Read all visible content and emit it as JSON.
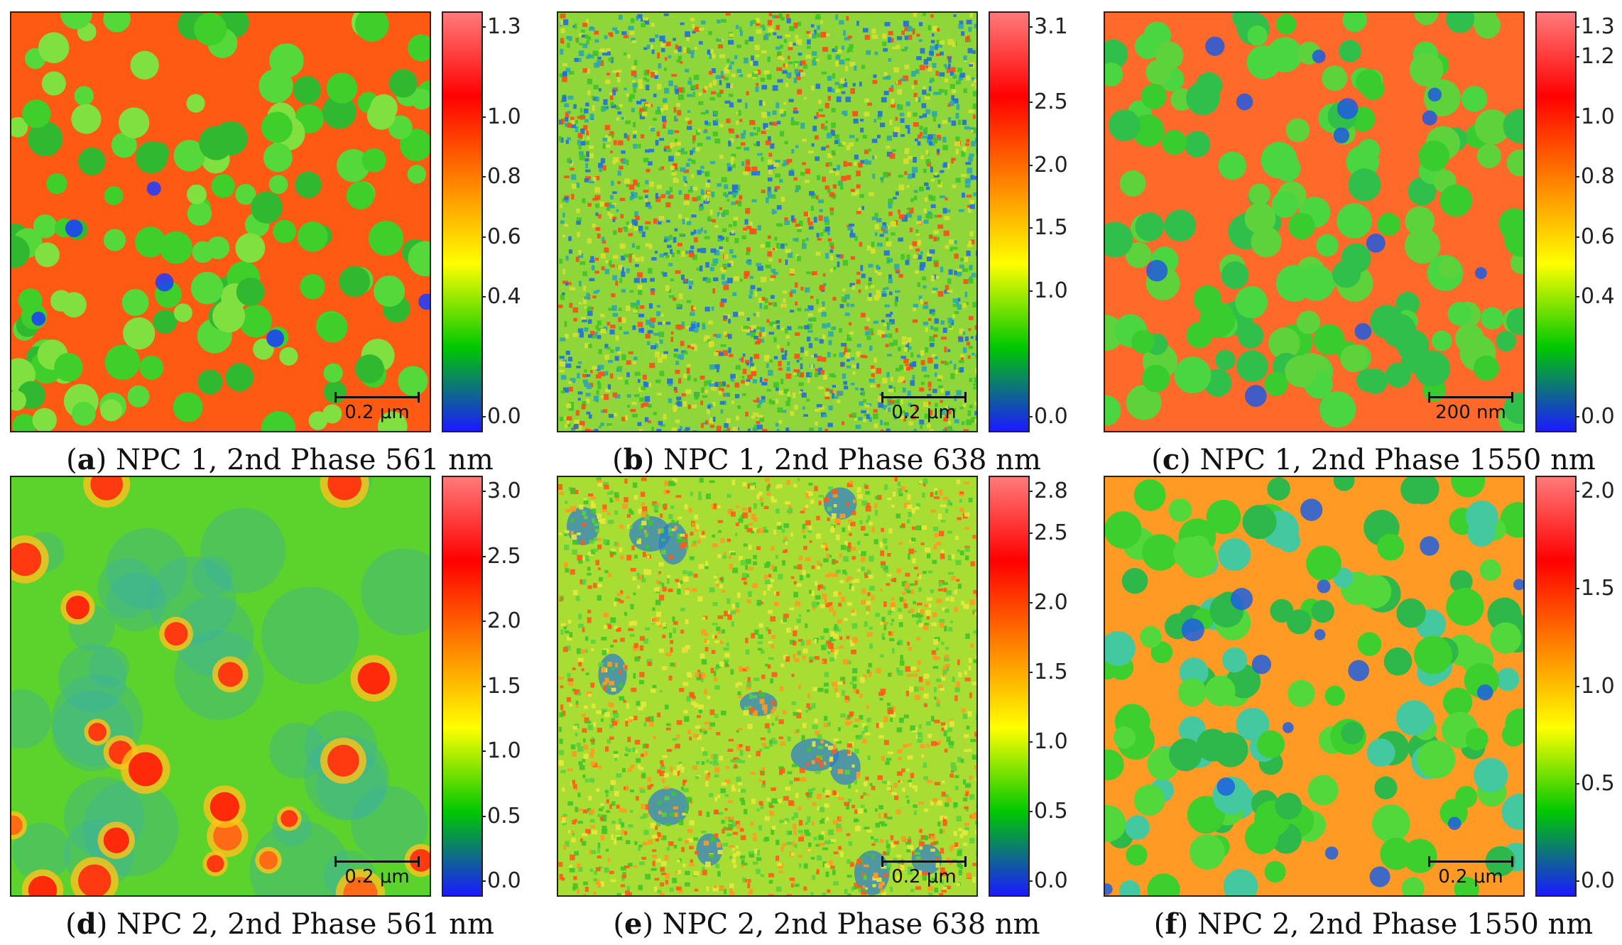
{
  "figure": {
    "panels": [
      {
        "id": "a",
        "letter": "a",
        "caption_text": "NPC 1, 2nd Phase 561 nm",
        "scale_label": "0.2 μm",
        "colorbar_ticks": [
          "1.3",
          "1.0",
          "0.8",
          "0.6",
          "0.4",
          "0.0"
        ],
        "colorbar_values": [
          1.3,
          1.0,
          0.8,
          0.6,
          0.4,
          0.0
        ],
        "range": [
          0.0,
          1.3
        ],
        "pattern": "red-network-green-blobs"
      },
      {
        "id": "b",
        "letter": "b",
        "caption_text": "NPC 1, 2nd Phase 638 nm",
        "scale_label": "0.2 μm",
        "colorbar_ticks": [
          "3.1",
          "2.5",
          "2.0",
          "1.5",
          "1.0",
          "0.0"
        ],
        "colorbar_values": [
          3.1,
          2.5,
          2.0,
          1.5,
          1.0,
          0.0
        ],
        "range": [
          0.0,
          3.1
        ],
        "pattern": "fine-noise"
      },
      {
        "id": "c",
        "letter": "c",
        "caption_text": "NPC 1, 2nd Phase 1550 nm",
        "scale_label": "200 nm",
        "colorbar_ticks": [
          "1.3",
          "1.2",
          "1.0",
          "0.8",
          "0.6",
          "0.4",
          "0.0"
        ],
        "colorbar_values": [
          1.3,
          1.2,
          1.0,
          0.8,
          0.6,
          0.4,
          0.0
        ],
        "range": [
          0.0,
          1.3
        ],
        "pattern": "green-blobs-red-gaps"
      },
      {
        "id": "d",
        "letter": "d",
        "caption_text": "NPC 2, 2nd Phase 561 nm",
        "scale_label": "0.2 μm",
        "colorbar_ticks": [
          "3.0",
          "2.5",
          "2.0",
          "1.5",
          "1.0",
          "0.5",
          "0.0"
        ],
        "colorbar_values": [
          3.0,
          2.5,
          2.0,
          1.5,
          1.0,
          0.5,
          0.0
        ],
        "range": [
          0.0,
          3.0
        ],
        "pattern": "sparse-red-particles"
      },
      {
        "id": "e",
        "letter": "e",
        "caption_text": "NPC 2, 2nd Phase 638 nm",
        "scale_label": "0.2 μm",
        "colorbar_ticks": [
          "2.8",
          "2.5",
          "2.0",
          "1.5",
          "1.0",
          "0.5",
          "0.0"
        ],
        "colorbar_values": [
          2.8,
          2.5,
          2.0,
          1.5,
          1.0,
          0.5,
          0.0
        ],
        "range": [
          0.0,
          2.8
        ],
        "pattern": "noise-with-blue-patches"
      },
      {
        "id": "f",
        "letter": "f",
        "caption_text": "NPC 2, 2nd Phase 1550 nm",
        "scale_label": "0.2 μm",
        "colorbar_ticks": [
          "2.0",
          "1.5",
          "1.0",
          "0.5",
          "0.0"
        ],
        "colorbar_values": [
          2.0,
          1.5,
          1.0,
          0.5,
          0.0
        ],
        "range": [
          0.0,
          2.0
        ],
        "pattern": "green-blue-blobs-orange-gaps"
      }
    ],
    "colormap": [
      "#1a1aff",
      "#00c800",
      "#ffff00",
      "#ff8000",
      "#ff0000",
      "#ff7a7a"
    ]
  }
}
